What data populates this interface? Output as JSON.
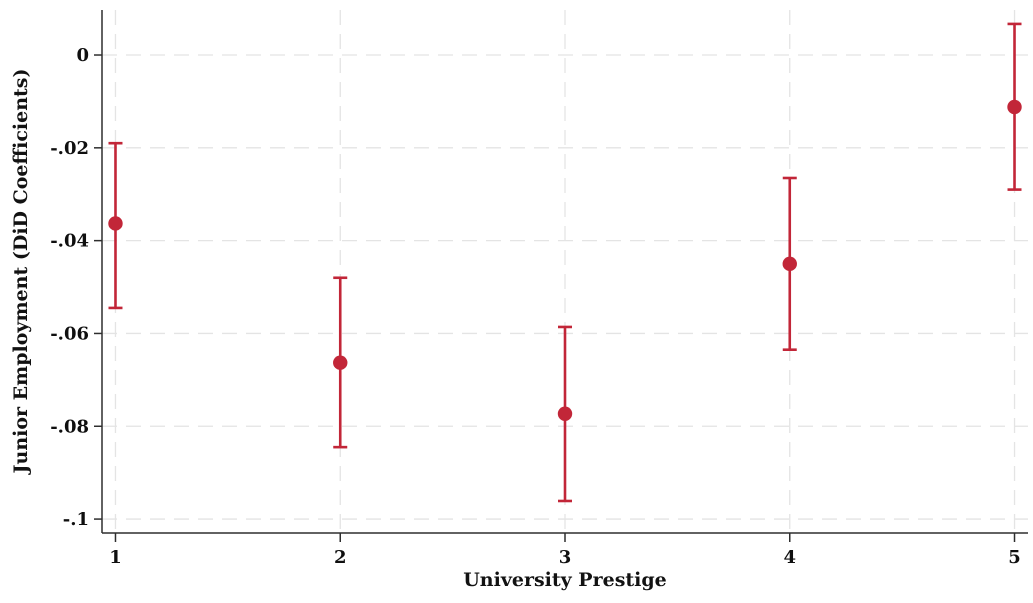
{
  "chart_data": {
    "type": "scatter",
    "subtype": "coefficient-plot-with-confidence-intervals",
    "title": "",
    "xlabel": "University Prestige",
    "ylabel": "Junior Employment (DiD Coefficients)",
    "categories": [
      1,
      2,
      3,
      4,
      5
    ],
    "xtick_labels": [
      "1",
      "2",
      "3",
      "4",
      "5"
    ],
    "yticks": [
      0,
      -0.02,
      -0.04,
      -0.06,
      -0.08,
      -0.1
    ],
    "ytick_labels": [
      "0",
      "-.02",
      "-.04",
      "-.06",
      "-.08",
      "-.1"
    ],
    "xlim": [
      0.94,
      5.06
    ],
    "ylim": [
      -0.103,
      0.0097
    ],
    "grid": true,
    "legend": false,
    "series": [
      {
        "name": "DiD coefficient",
        "x": [
          1,
          2,
          3,
          4,
          5
        ],
        "values": [
          -0.0363,
          -0.0663,
          -0.0773,
          -0.045,
          -0.0112
        ],
        "ci_low": [
          -0.0545,
          -0.0845,
          -0.0961,
          -0.0635,
          -0.029
        ],
        "ci_high": [
          -0.019,
          -0.048,
          -0.0586,
          -0.0265,
          0.0067
        ],
        "color": "#c22638"
      }
    ],
    "colors": {
      "marker": "#c22638",
      "grid": "#e4e4e4",
      "axis": "#2e2e2e",
      "text": "#0f0f0f",
      "background": "#ffffff"
    }
  }
}
